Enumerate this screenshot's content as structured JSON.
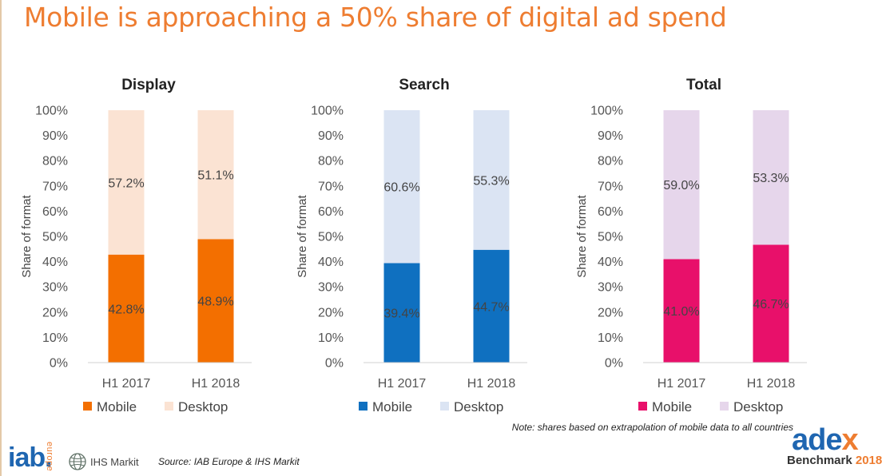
{
  "slide": {
    "title": "Mobile is approaching a 50% share of digital ad spend",
    "note": "Note: shares based on extrapolation of mobile data to all countries",
    "source": "Source: IAB Europe & IHS Markit",
    "logos": {
      "iab_main": "iab.",
      "iab_sub": "europe",
      "ihs": "IHS Markit",
      "adex_main_a": "ade",
      "adex_main_b": "x",
      "adex_sub_a": "Benchmark ",
      "adex_sub_b": "2018"
    }
  },
  "colors": {
    "title": "#ee7d31",
    "display_mobile": "#f36f00",
    "display_desktop": "#fbe3d3",
    "search_mobile": "#0f70c0",
    "search_desktop": "#dbe4f3",
    "total_mobile": "#e8106a",
    "total_desktop": "#e6d6eb"
  },
  "chart_data": [
    {
      "type": "bar",
      "stacked": true,
      "title": "Display",
      "ylabel": "Share of format",
      "xlabel": "",
      "ylim": [
        0,
        100
      ],
      "yticks": [
        "0%",
        "10%",
        "20%",
        "30%",
        "40%",
        "50%",
        "60%",
        "70%",
        "80%",
        "90%",
        "100%"
      ],
      "categories": [
        "H1 2017",
        "H1 2018"
      ],
      "series": [
        {
          "name": "Mobile",
          "values": [
            42.8,
            48.9
          ],
          "labels": [
            "42.8%",
            "48.9%"
          ],
          "color": "#f36f00"
        },
        {
          "name": "Desktop",
          "values": [
            57.2,
            51.1
          ],
          "labels": [
            "57.2%",
            "51.1%"
          ],
          "color": "#fbe3d3"
        }
      ],
      "legend": "bottom",
      "grid": false
    },
    {
      "type": "bar",
      "stacked": true,
      "title": "Search",
      "ylabel": "Share of format",
      "xlabel": "",
      "ylim": [
        0,
        100
      ],
      "yticks": [
        "0%",
        "10%",
        "20%",
        "30%",
        "40%",
        "50%",
        "60%",
        "70%",
        "80%",
        "90%",
        "100%"
      ],
      "categories": [
        "H1 2017",
        "H1 2018"
      ],
      "series": [
        {
          "name": "Mobile",
          "values": [
            39.4,
            44.7
          ],
          "labels": [
            "39.4%",
            "44.7%"
          ],
          "color": "#0f70c0"
        },
        {
          "name": "Desktop",
          "values": [
            60.6,
            55.3
          ],
          "labels": [
            "60.6%",
            "55.3%"
          ],
          "color": "#dbe4f3"
        }
      ],
      "legend": "bottom",
      "grid": false
    },
    {
      "type": "bar",
      "stacked": true,
      "title": "Total",
      "ylabel": "Share of format",
      "xlabel": "",
      "ylim": [
        0,
        100
      ],
      "yticks": [
        "0%",
        "10%",
        "20%",
        "30%",
        "40%",
        "50%",
        "60%",
        "70%",
        "80%",
        "90%",
        "100%"
      ],
      "categories": [
        "H1 2017",
        "H1 2018"
      ],
      "series": [
        {
          "name": "Mobile",
          "values": [
            41.0,
            46.7
          ],
          "labels": [
            "41.0%",
            "46.7%"
          ],
          "color": "#e8106a"
        },
        {
          "name": "Desktop",
          "values": [
            59.0,
            53.3
          ],
          "labels": [
            "59.0%",
            "53.3%"
          ],
          "color": "#e6d6eb"
        }
      ],
      "legend": "bottom",
      "grid": false
    }
  ]
}
